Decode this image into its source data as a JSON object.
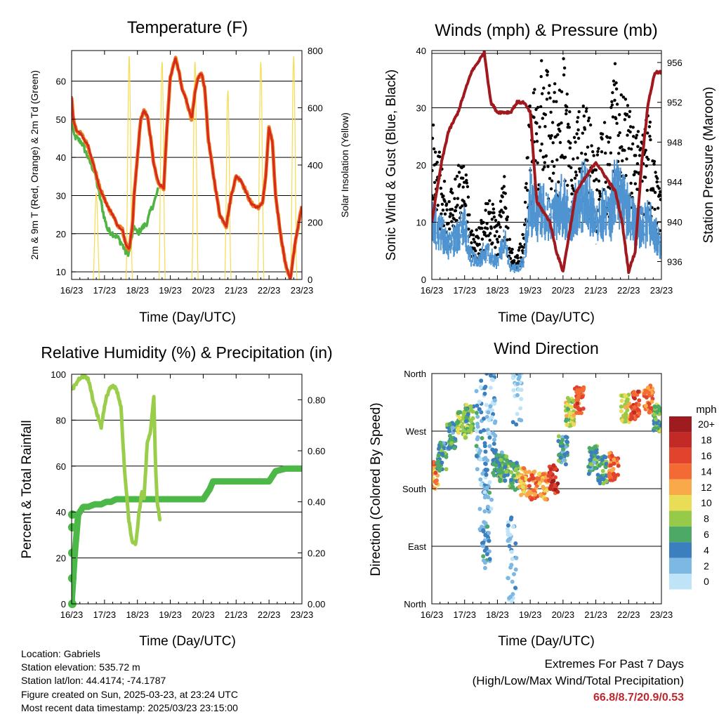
{
  "x_ticks": [
    "16/23",
    "17/23",
    "18/23",
    "19/23",
    "20/23",
    "21/23",
    "22/23",
    "23/23"
  ],
  "panels": {
    "temperature": {
      "title": "Temperature (F)",
      "xlabel": "Time (Day/UTC)",
      "ylabel_left": "2m & 9m T (Red, Orange) & 2m Td (Green)",
      "ylabel_right": "Solar Insolation (Yellow)",
      "left_ticks": [
        "10",
        "20",
        "30",
        "40",
        "50",
        "60"
      ],
      "right_ticks": [
        "0",
        "200",
        "400",
        "600",
        "800"
      ]
    },
    "winds": {
      "title": "Winds (mph) & Pressure (mb)",
      "xlabel": "Time (Day/UTC)",
      "ylabel_left": "Sonic Wind & Gust (Blue, Black)",
      "ylabel_right": "Station Pressure (Maroon)",
      "left_ticks": [
        "0",
        "10",
        "20",
        "30",
        "40"
      ],
      "right_ticks": [
        "936",
        "940",
        "944",
        "948",
        "952",
        "956"
      ]
    },
    "humidity": {
      "title": "Relative Humidity (%) & Precipitation (in)",
      "xlabel": "Time (Day/UTC)",
      "ylabel_left": "Percent & Total Rainfall",
      "left_ticks": [
        "0",
        "20",
        "40",
        "60",
        "80",
        "100"
      ],
      "right_ticks": [
        "0.00",
        "0.20",
        "0.40",
        "0.60",
        "0.80"
      ]
    },
    "direction": {
      "title": "Wind Direction",
      "xlabel": "Time (Day/UTC)",
      "ylabel_left": "Direction (Colored By Speed)",
      "left_ticks": [
        "North",
        "East",
        "South",
        "West",
        "North"
      ],
      "colorbar_title": "mph",
      "colorbar_labels": [
        "20+",
        "18",
        "16",
        "14",
        "12",
        "10",
        "8",
        "6",
        "4",
        "2",
        "0"
      ]
    }
  },
  "colors": {
    "temp_2m": "#d42b20",
    "temp_9m": "#f07e1c",
    "dewpoint": "#4fb443",
    "solar": "#f5dc50",
    "wind": "#4f94d0",
    "gust": "#000000",
    "pressure": "#a0191e",
    "rh": "#9acd4a",
    "precip": "#4cb848",
    "colorbar": [
      "#9e1b1f",
      "#c22a26",
      "#e2432c",
      "#f46a35",
      "#f9a94a",
      "#e8dd55",
      "#96cb4a",
      "#4ca966",
      "#3b7fbf",
      "#7cb8e3",
      "#bfe3f7"
    ]
  },
  "station": {
    "location": "Location: Gabriels",
    "elevation": "Station elevation: 535.72 m",
    "latlon": "Station lat/lon: 44.4174; -74.1787",
    "created": "Figure created on Sun, 2025-03-23, at 23:24 UTC",
    "recent": "Most recent data timestamp: 2025/03/23 23:15:00"
  },
  "extremes": {
    "title": "Extremes For Past 7 Days",
    "subtitle": "(High/Low/Max Wind/Total Precipitation)",
    "values": "66.8/8.7/20.9/0.53"
  },
  "chart_data": [
    {
      "type": "line",
      "name": "temperature",
      "x": [
        0,
        0.05,
        0.15,
        0.3,
        0.5,
        0.7,
        0.85,
        1.0,
        1.1,
        1.25,
        1.4,
        1.55,
        1.65,
        1.75,
        1.85,
        1.9,
        2.0,
        2.1,
        2.2,
        2.3,
        2.4,
        2.5,
        2.65,
        2.8,
        2.9,
        3.0,
        3.15,
        3.25,
        3.35,
        3.45,
        3.55,
        3.65,
        3.75,
        3.85,
        3.95,
        4.05,
        4.15,
        4.3,
        4.5,
        4.7,
        4.85,
        5.0,
        5.15,
        5.3,
        5.45,
        5.6,
        5.7,
        5.8,
        5.9,
        6.0,
        6.1,
        6.2,
        6.35,
        6.5,
        6.65,
        6.8,
        6.95,
        7.0
      ],
      "series": [
        {
          "name": "2m T",
          "values": [
            56,
            50,
            47,
            46,
            43,
            37,
            32,
            29,
            27,
            25,
            22,
            21,
            17,
            16,
            22,
            30,
            40,
            50,
            52,
            51,
            45,
            38,
            33,
            32,
            48,
            61,
            66,
            63,
            58,
            56,
            53,
            50,
            57,
            61,
            62,
            58,
            45,
            36,
            25,
            22,
            30,
            35,
            34,
            31,
            28,
            27,
            27,
            28,
            35,
            48,
            44,
            30,
            20,
            12,
            8,
            18,
            25,
            27
          ]
        },
        {
          "name": "2m Td",
          "values": [
            55,
            46,
            45,
            44,
            40,
            36,
            30,
            24,
            21,
            20,
            19,
            17,
            15,
            15,
            20,
            22,
            20,
            21,
            22,
            23,
            26,
            28,
            32,
            null,
            null,
            null,
            null,
            null,
            null,
            null,
            null,
            null,
            null,
            null,
            null,
            null,
            null,
            null,
            null,
            null,
            null,
            null,
            null,
            null,
            null,
            null,
            null,
            null,
            null,
            null,
            null,
            null,
            null,
            null,
            null,
            null,
            null,
            null
          ]
        }
      ],
      "solar_insolation": {
        "x": [
          0.65,
          0.75,
          0.85,
          1.65,
          1.75,
          1.85,
          2.65,
          2.75,
          2.85,
          3.65,
          3.75,
          3.85,
          4.65,
          4.75,
          4.85,
          5.65,
          5.75,
          5.85,
          6.65,
          6.75,
          6.85
        ],
        "values": [
          0,
          300,
          0,
          0,
          780,
          0,
          0,
          760,
          0,
          0,
          760,
          0,
          0,
          660,
          0,
          0,
          760,
          0,
          0,
          780,
          0
        ]
      },
      "xlim": [
        0,
        7
      ],
      "ylim": [
        8,
        68
      ],
      "y2lim": [
        0,
        800
      ]
    },
    {
      "type": "line",
      "name": "winds_pressure",
      "x": [
        0,
        0.3,
        0.5,
        0.8,
        1.0,
        1.2,
        1.4,
        1.6,
        1.8,
        2.0,
        2.2,
        2.4,
        2.6,
        2.8,
        3.0,
        3.2,
        3.4,
        3.6,
        3.8,
        4.0,
        4.2,
        4.4,
        4.6,
        4.8,
        5.0,
        5.2,
        5.4,
        5.6,
        5.8,
        6.0,
        6.2,
        6.4,
        6.6,
        6.8,
        7.0
      ],
      "series": [
        {
          "name": "Sonic Wind",
          "values": [
            10,
            8,
            6,
            8,
            9,
            4,
            3,
            5,
            4,
            3,
            7,
            2,
            2,
            3,
            14,
            11,
            13,
            10,
            12,
            13,
            10,
            12,
            15,
            13,
            9,
            12,
            10,
            16,
            13,
            12,
            10,
            9,
            10,
            8,
            6
          ]
        },
        {
          "name": "Gust",
          "values": [
            20,
            14,
            10,
            14,
            15,
            7,
            6,
            9,
            10,
            7,
            13,
            4,
            3,
            6,
            24,
            23,
            28,
            24,
            25,
            30,
            22,
            19,
            22,
            20,
            14,
            20,
            18,
            27,
            23,
            21,
            19,
            17,
            22,
            14,
            10
          ]
        },
        {
          "name": "Station Pressure",
          "values": [
            940,
            946,
            949,
            951,
            953,
            955,
            956,
            957,
            952,
            951,
            951,
            951,
            952,
            952,
            951,
            942,
            941,
            940,
            937,
            935,
            939,
            943,
            944,
            945,
            946,
            945,
            944,
            943,
            940,
            935,
            937,
            946,
            952,
            955,
            955
          ]
        }
      ],
      "xlim": [
        0,
        7
      ],
      "ylim": [
        0,
        40
      ],
      "y2lim": [
        934.2,
        957.2
      ]
    },
    {
      "type": "line",
      "name": "rh_precip",
      "x": [
        0,
        0.05,
        0.1,
        0.2,
        0.35,
        0.5,
        0.7,
        0.9,
        1.05,
        1.2,
        1.35,
        1.5,
        1.6,
        1.75,
        1.85,
        1.95,
        2.05,
        2.15,
        2.2,
        2.3,
        2.4,
        2.5,
        2.55,
        2.6,
        2.7,
        2.8,
        3.0,
        3.5,
        4.0,
        4.2,
        4.3,
        5.0,
        5.5,
        6.0,
        6.2,
        6.5,
        7.0
      ],
      "series": [
        {
          "name": "RH",
          "values": [
            93,
            94,
            95,
            98,
            99,
            98,
            86,
            77,
            90,
            95,
            94,
            86,
            60,
            35,
            27,
            26,
            40,
            50,
            46,
            70,
            75,
            90,
            60,
            45,
            35,
            null,
            null,
            null,
            null,
            null,
            null,
            null,
            null,
            null,
            null,
            null,
            null
          ]
        },
        {
          "name": "Total Rainfall",
          "values": [
            0.0,
            0.1,
            0.2,
            0.35,
            0.38,
            0.38,
            0.39,
            0.39,
            0.4,
            0.4,
            0.41,
            0.41,
            0.41,
            0.41,
            0.41,
            0.41,
            0.41,
            0.41,
            0.41,
            0.41,
            0.41,
            0.41,
            0.41,
            0.41,
            0.41,
            0.41,
            0.41,
            0.41,
            0.41,
            0.45,
            0.48,
            0.48,
            0.48,
            0.48,
            0.52,
            0.53,
            0.53
          ]
        }
      ],
      "xlim": [
        0,
        7
      ],
      "ylim": [
        0,
        100
      ],
      "y2lim": [
        0,
        0.9
      ]
    },
    {
      "type": "scatter",
      "name": "wind_direction",
      "clusters": [
        {
          "x": 0.05,
          "direction": 200,
          "speed": 13
        },
        {
          "x": 0.3,
          "direction": 230,
          "speed": 5
        },
        {
          "x": 0.6,
          "direction": 262,
          "speed": 5
        },
        {
          "x": 0.9,
          "direction": 280,
          "speed": 8
        },
        {
          "x": 1.15,
          "direction": 290,
          "speed": 7
        },
        {
          "x": 1.5,
          "direction": 280,
          "speed": 3
        },
        {
          "x": 1.6,
          "direction": 160,
          "speed": 2
        },
        {
          "x": 1.7,
          "direction": 120,
          "speed": 3
        },
        {
          "x": 1.8,
          "direction": 310,
          "speed": 2
        },
        {
          "x": 2.0,
          "direction": 220,
          "speed": 5
        },
        {
          "x": 2.2,
          "direction": 210,
          "speed": 6
        },
        {
          "x": 2.45,
          "direction": 70,
          "speed": 1
        },
        {
          "x": 2.5,
          "direction": 200,
          "speed": 7
        },
        {
          "x": 2.6,
          "direction": 350,
          "speed": 1
        },
        {
          "x": 2.8,
          "direction": 190,
          "speed": 12
        },
        {
          "x": 3.1,
          "direction": 185,
          "speed": 14
        },
        {
          "x": 3.4,
          "direction": 185,
          "speed": 12
        },
        {
          "x": 3.7,
          "direction": 195,
          "speed": 17
        },
        {
          "x": 4.0,
          "direction": 240,
          "speed": 5
        },
        {
          "x": 4.2,
          "direction": 300,
          "speed": 9
        },
        {
          "x": 4.5,
          "direction": 320,
          "speed": 15
        },
        {
          "x": 4.9,
          "direction": 225,
          "speed": 5
        },
        {
          "x": 5.2,
          "direction": 210,
          "speed": 6
        },
        {
          "x": 5.55,
          "direction": 215,
          "speed": 14
        },
        {
          "x": 5.9,
          "direction": 305,
          "speed": 9
        },
        {
          "x": 6.2,
          "direction": 310,
          "speed": 16
        },
        {
          "x": 6.6,
          "direction": 320,
          "speed": 14
        },
        {
          "x": 6.9,
          "direction": 290,
          "speed": 7
        }
      ],
      "xlim": [
        0,
        7
      ],
      "ylim": [
        0,
        360
      ]
    }
  ]
}
